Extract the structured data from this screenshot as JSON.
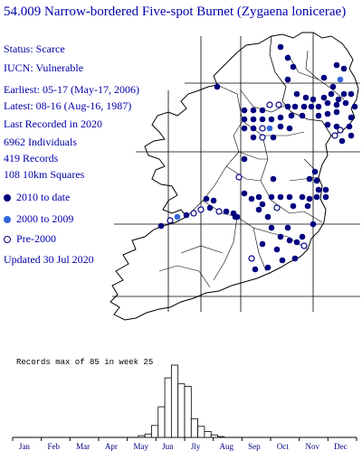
{
  "title": "54.009 Narrow-bordered Five-spot Burnet (Zygaena lonicerae)",
  "info": {
    "status": "Status: Scarce",
    "iucn": "IUCN: Vulnerable",
    "earliest": "Earliest: 05-17 (May-17, 2006)",
    "latest": "Latest: 08-16 (Aug-16, 1987)",
    "last_recorded": "Last Recorded in 2020",
    "individuals": "6962 Individuals",
    "records": "419 Records",
    "squares": "108 10km Squares",
    "updated": "Updated 30 Jul 2020"
  },
  "legend": [
    {
      "label": "2010 to date",
      "color": "#000080",
      "style": "filled"
    },
    {
      "label": "2000 to 2009",
      "color": "#3366dd",
      "style": "filled"
    },
    {
      "label": "Pre-2000",
      "color": "#000080",
      "style": "open"
    }
  ],
  "histogram": {
    "title": "Records max of 85 in week 25",
    "max": 85,
    "max_week": 25,
    "months": [
      "Jan",
      "Feb",
      "Mar",
      "Apr",
      "May",
      "Jun",
      "Jly",
      "Aug",
      "Sep",
      "Oct",
      "Nov",
      "Dec"
    ],
    "weekly_records": [
      {
        "week": 20,
        "value": 2
      },
      {
        "week": 21,
        "value": 4
      },
      {
        "week": 22,
        "value": 14
      },
      {
        "week": 23,
        "value": 36
      },
      {
        "week": 24,
        "value": 70
      },
      {
        "week": 25,
        "value": 85
      },
      {
        "week": 26,
        "value": 63
      },
      {
        "week": 27,
        "value": 60
      },
      {
        "week": 28,
        "value": 22
      },
      {
        "week": 29,
        "value": 13
      },
      {
        "week": 30,
        "value": 7
      },
      {
        "week": 31,
        "value": 3
      },
      {
        "week": 32,
        "value": 1
      }
    ]
  }
}
